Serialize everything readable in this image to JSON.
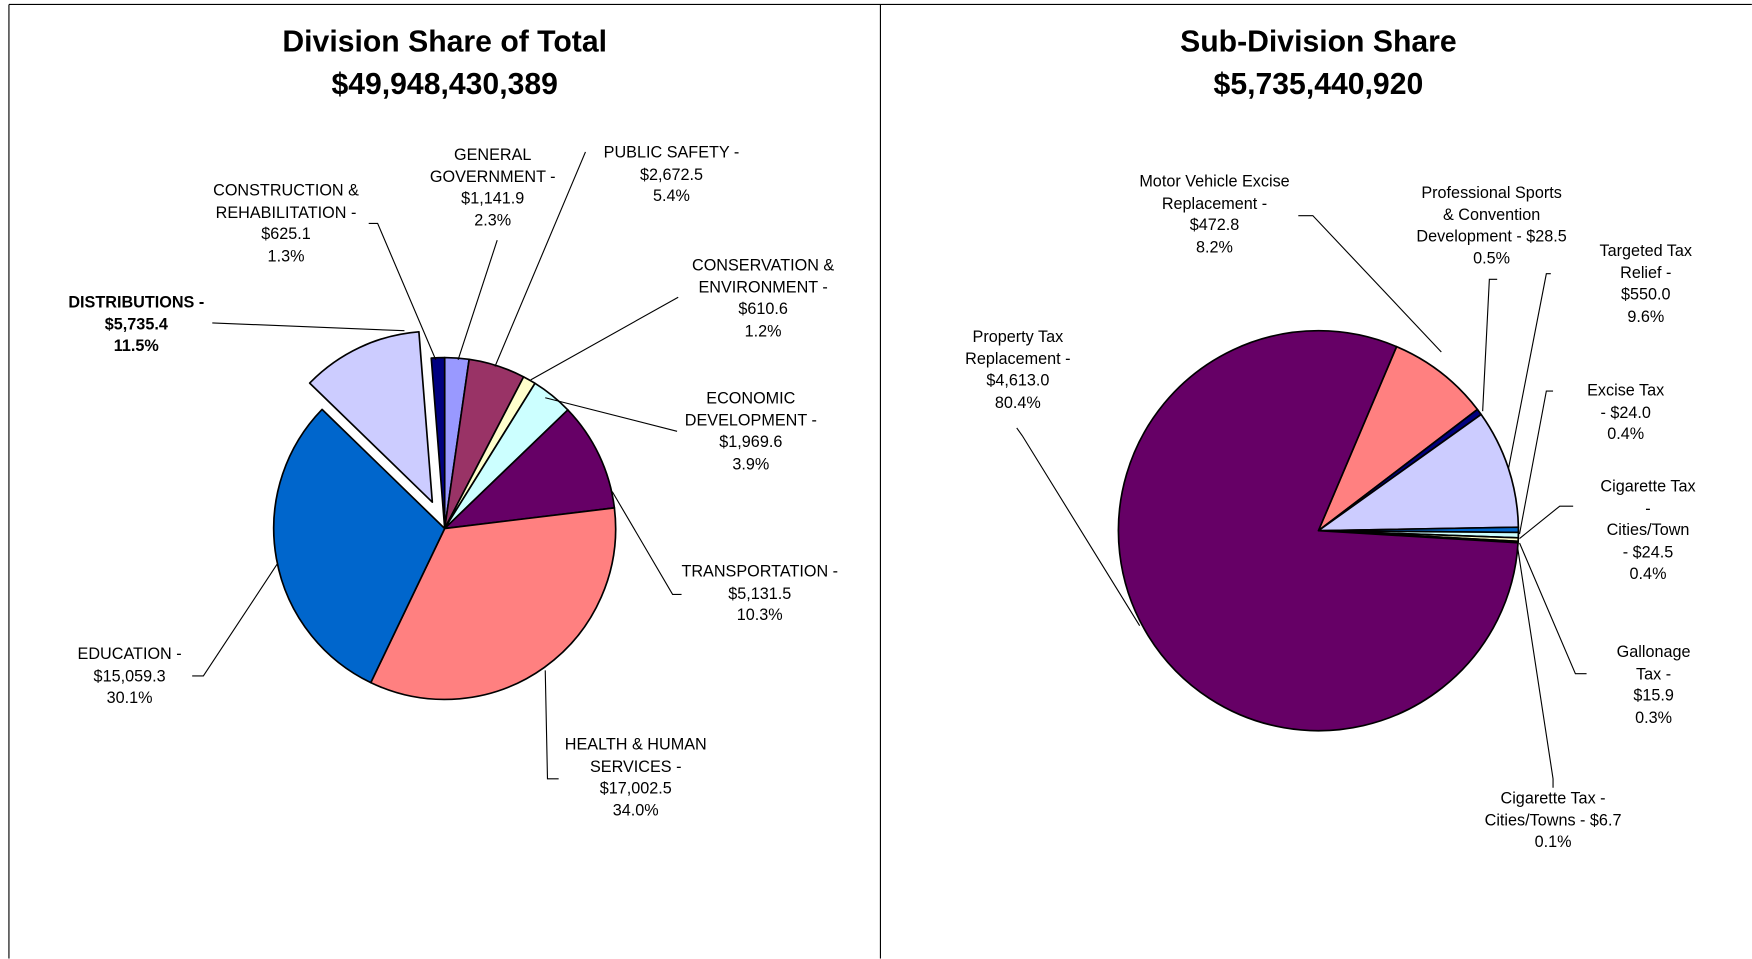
{
  "chart_data": [
    {
      "type": "pie",
      "title": "Division Share of Total",
      "subtitle": "$49,948,430,389",
      "categories": [
        "GENERAL\nGOVERNMENT -",
        "PUBLIC SAFETY -",
        "CONSERVATION &\nENVIRONMENT -",
        "ECONOMIC\nDEVELOPMENT -",
        "TRANSPORTATION -",
        "HEALTH & HUMAN\nSERVICES -",
        "EDUCATION -",
        "DISTRIBUTIONS -",
        "CONSTRUCTION &\nREHABILITATION -"
      ],
      "values": [
        1141.9,
        2672.5,
        610.6,
        1969.6,
        5131.5,
        17002.5,
        15059.3,
        5735.4,
        625.1
      ],
      "value_labels": [
        "$1,141.9",
        "$2,672.5",
        "$610.6",
        "$1,969.6",
        "$5,131.5",
        "$17,002.5",
        "$15,059.3",
        "$5,735.4",
        "$625.1"
      ],
      "percents": [
        2.3,
        5.4,
        1.2,
        3.9,
        10.3,
        34,
        30.1,
        11.5,
        1.3
      ],
      "percent_labels": [
        "2.3%",
        "5.4%",
        "1.2%",
        "3.9%",
        "10.3%",
        "34.0%",
        "30.1%",
        "11.5%",
        "1.3%"
      ],
      "colors": [
        "#9999ff",
        "#993366",
        "#ffffcc",
        "#ccffff",
        "#660066",
        "#ff8080",
        "#0066cc",
        "#ccccff",
        "#000080"
      ],
      "start_angle": 0,
      "exploded_index": 7
    },
    {
      "type": "pie",
      "title": "Sub-Division Share",
      "subtitle": "$5,735,440,920",
      "categories": [
        "Motor Vehicle Excise\nReplacement -",
        "Professional Sports\n& Convention\nDevelopment -",
        "Targeted Tax Relief -",
        "Excise Tax -",
        "Cigarette Tax -\nCities/Town -",
        "Gallonage Tax -",
        "Cigarette Tax -\nCities/Towns -",
        "Property Tax\nReplacement -"
      ],
      "values": [
        472.8,
        28.5,
        550,
        24,
        24.5,
        15.9,
        6.7,
        4613
      ],
      "value_labels": [
        "$472.8",
        "$28.5",
        "$550.0",
        "$24.0",
        "$24.5",
        "$15.9",
        "$6.7",
        "$4,613.0"
      ],
      "percents": [
        8.2,
        0.5,
        9.6,
        0.4,
        0.4,
        0.3,
        0.1,
        80.4
      ],
      "percent_labels": [
        "8.2%",
        "0.5%",
        "9.6%",
        "0.4%",
        "0.4%",
        "0.3%",
        "0.1%",
        "80.4%"
      ],
      "colors": [
        "#ff8080",
        "#000080",
        "#ccccff",
        "#0066cc",
        "#ccffff",
        "#ffffcc",
        "#993366",
        "#660066"
      ],
      "start_angle": 23
    }
  ]
}
